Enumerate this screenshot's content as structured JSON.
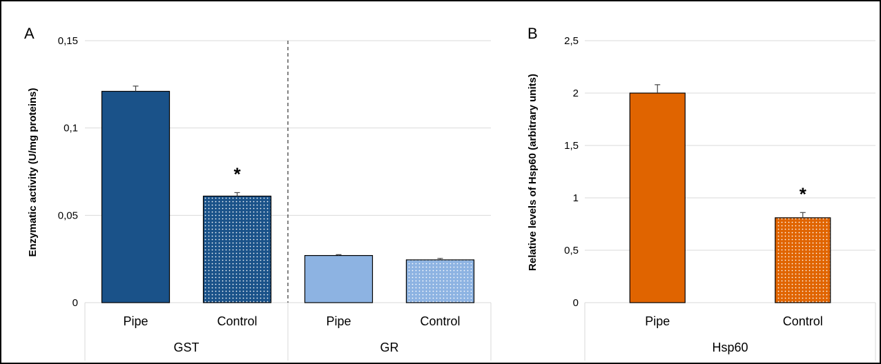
{
  "colors": {
    "gst": "#1a5289",
    "gr": "#8db3e2",
    "hsp60": "#e06400",
    "gridline": "#d9d9d9",
    "border": "#000000"
  },
  "chart_data": [
    {
      "type": "bar",
      "panel_label": "A",
      "ylabel": "Enzymatic activity (U/mg proteins)",
      "ylim": [
        0,
        0.15
      ],
      "yticks": [
        0,
        0.05,
        0.1,
        0.15
      ],
      "ytick_labels": [
        "0",
        "0,05",
        "0,1",
        "0,15"
      ],
      "grid": true,
      "group_separator": "dashed",
      "groups": [
        {
          "name": "GST",
          "bars": [
            {
              "label": "Pipe",
              "value": 0.121,
              "error": 0.003,
              "pattern": "solid",
              "significant": false
            },
            {
              "label": "Control",
              "value": 0.061,
              "error": 0.002,
              "pattern": "dotted",
              "significant": true
            }
          ]
        },
        {
          "name": "GR",
          "bars": [
            {
              "label": "Pipe",
              "value": 0.027,
              "error": 0.0005,
              "pattern": "solid",
              "significant": false
            },
            {
              "label": "Control",
              "value": 0.0245,
              "error": 0.0008,
              "pattern": "dotted",
              "significant": false
            }
          ]
        }
      ],
      "significance_marker": "*"
    },
    {
      "type": "bar",
      "panel_label": "B",
      "ylabel": "Relative levels of Hsp60 (arbitrary units)",
      "ylim": [
        0,
        2.5
      ],
      "yticks": [
        0,
        0.5,
        1,
        1.5,
        2,
        2.5
      ],
      "ytick_labels": [
        "0",
        "0,5",
        "1",
        "1,5",
        "2",
        "2,5"
      ],
      "grid": true,
      "groups": [
        {
          "name": "Hsp60",
          "bars": [
            {
              "label": "Pipe",
              "value": 2.0,
              "error": 0.08,
              "pattern": "solid",
              "significant": false
            },
            {
              "label": "Control",
              "value": 0.81,
              "error": 0.05,
              "pattern": "dotted",
              "significant": true
            }
          ]
        }
      ],
      "significance_marker": "*"
    }
  ]
}
